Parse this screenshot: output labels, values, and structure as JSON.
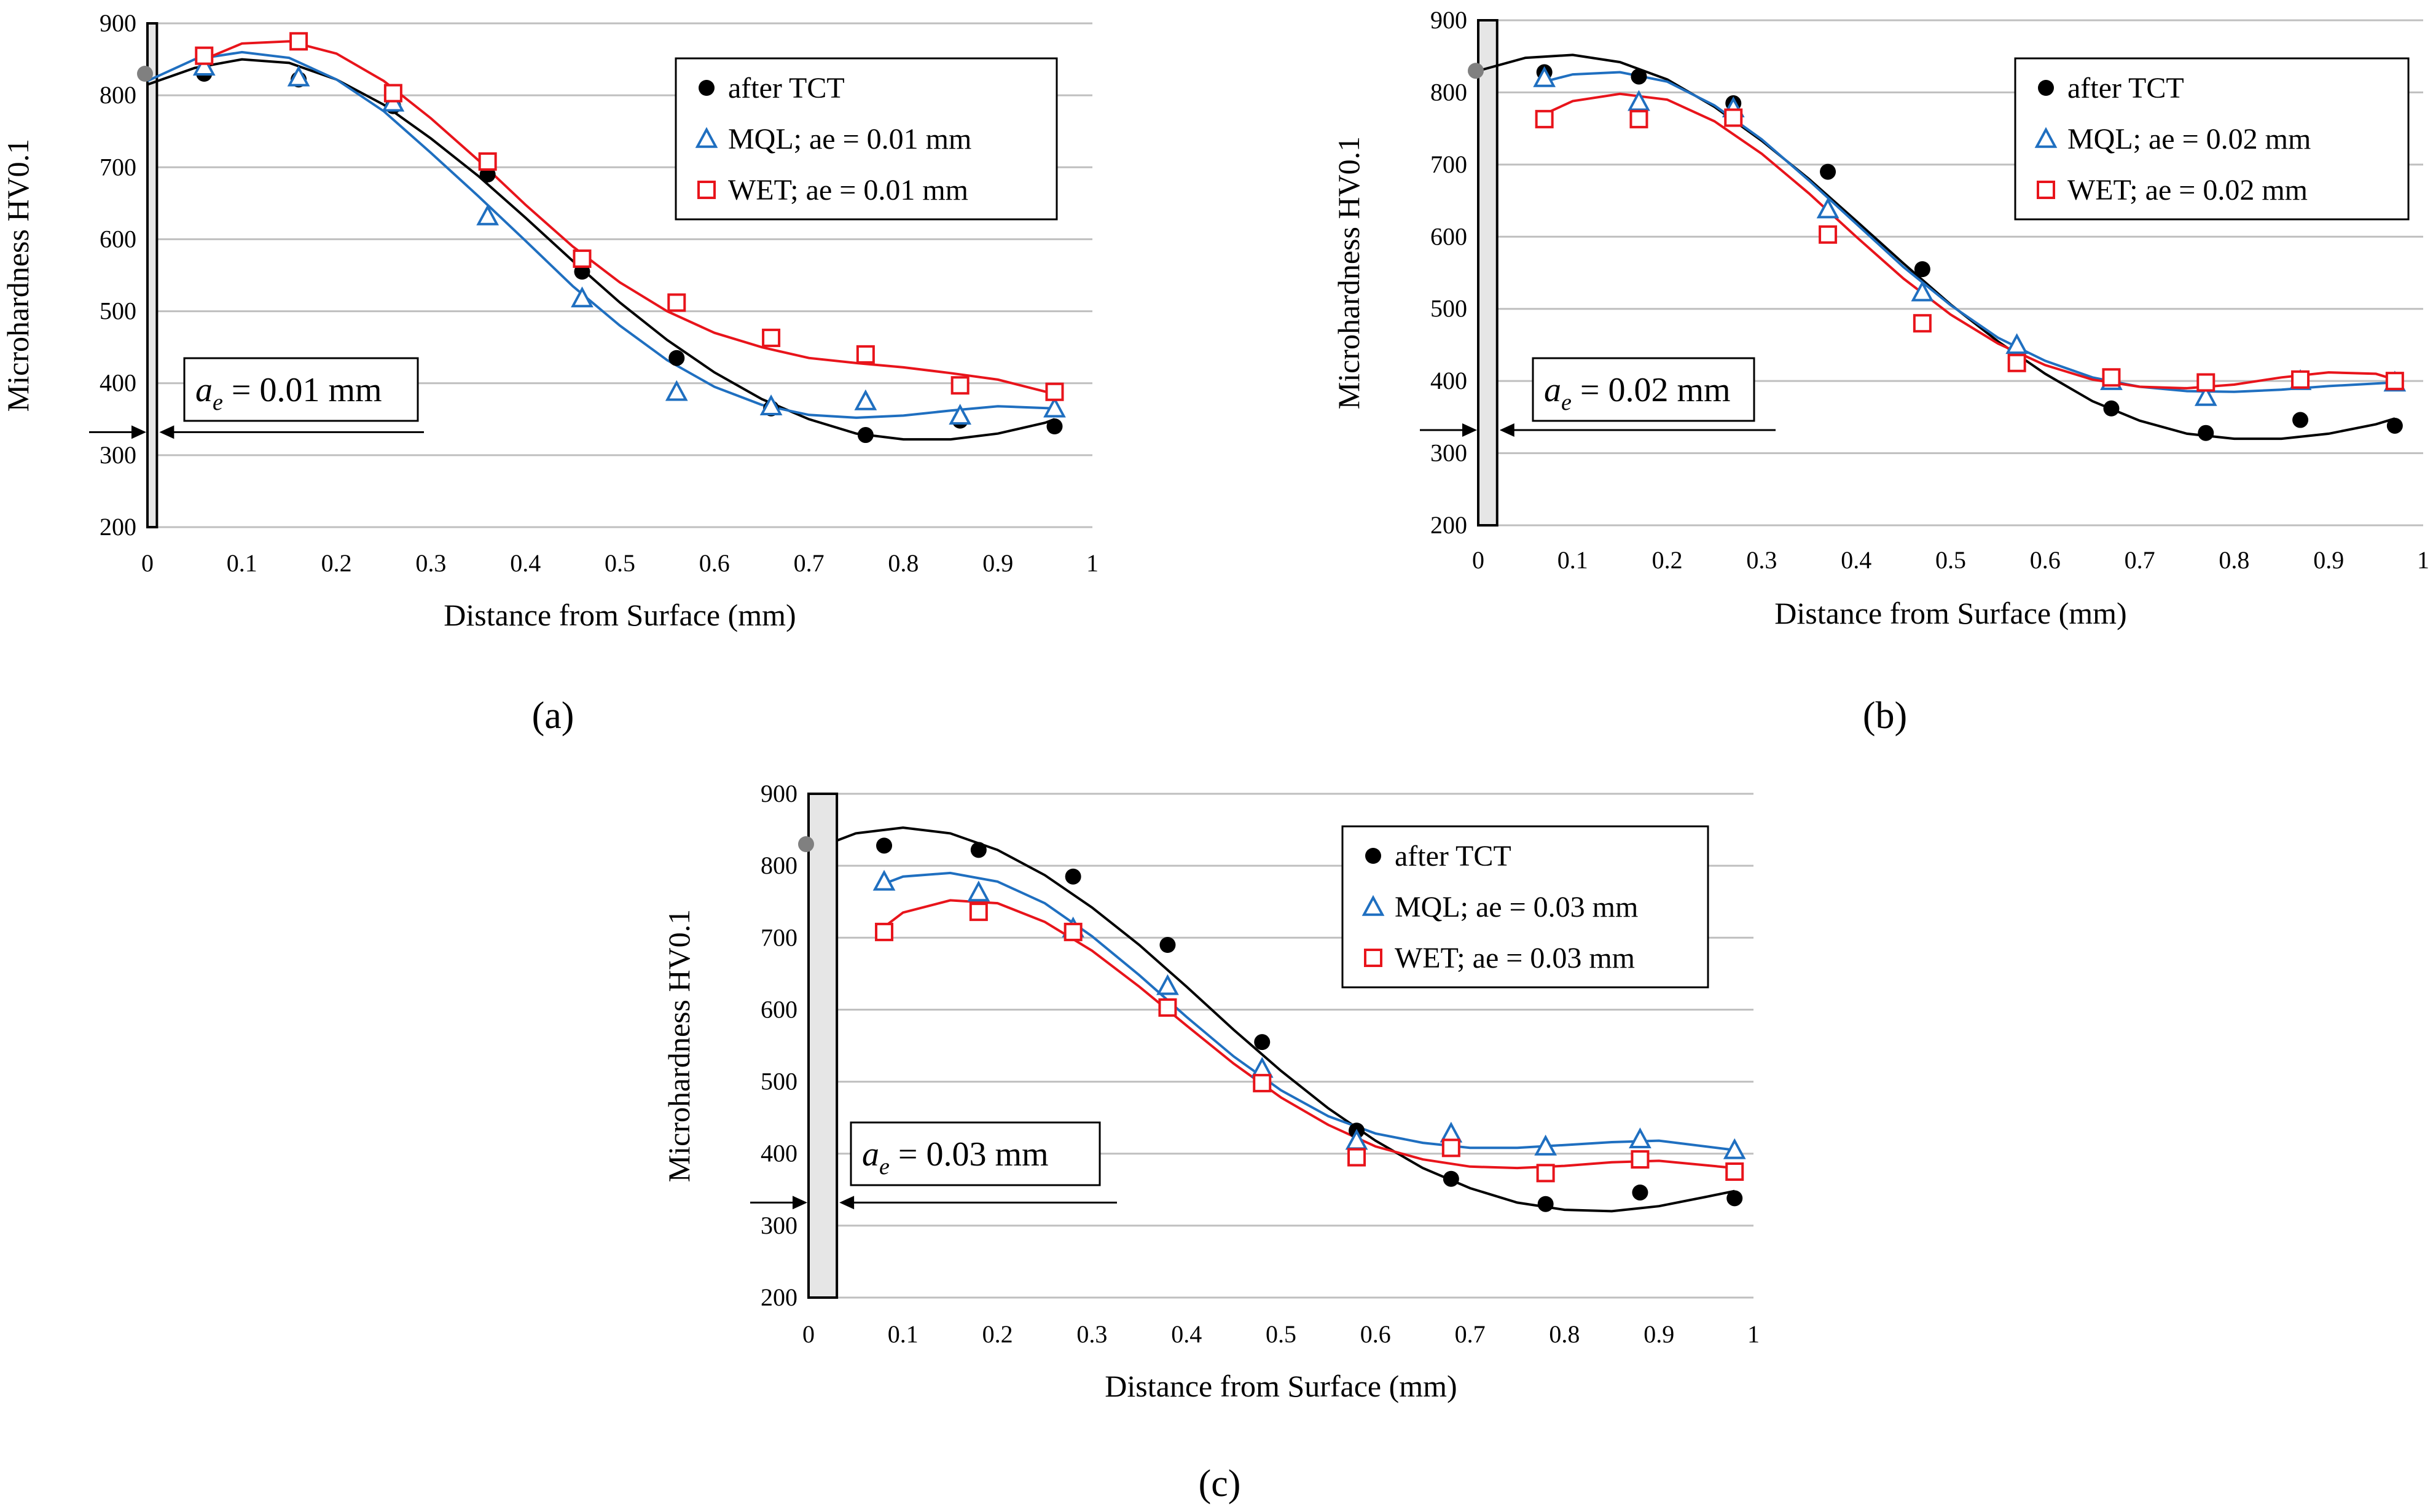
{
  "figure": {
    "panel_labels": [
      "(a)",
      "(b)",
      "(c)"
    ]
  },
  "colors": {
    "tct": "#000000",
    "mql": "#1F6FC0",
    "wet": "#E8141B",
    "grid": "#BFBFBF",
    "band": "#E6E6E6"
  },
  "chart_data": [
    {
      "type": "scatter",
      "panel": "(a)",
      "xlabel": "Distance from Surface (mm)",
      "ylabel": "Microhardness HV0.1",
      "xlim": [
        0,
        1
      ],
      "ylim": [
        200,
        900
      ],
      "xticks": [
        "0",
        "0.1",
        "0.2",
        "0.3",
        "0.4",
        "0.5",
        "0.6",
        "0.7",
        "0.8",
        "0.9",
        "1"
      ],
      "yticks": [
        "200",
        "300",
        "400",
        "500",
        "600",
        "700",
        "800",
        "900"
      ],
      "band_width": 0.01,
      "surface_point": [
        0.0,
        830
      ],
      "marker_level": 332,
      "annotation": {
        "italic": "a",
        "sub": "e",
        "rest": " = 0.01 mm"
      },
      "legend": [
        "after TCT",
        "MQL; ae = 0.01 mm",
        "WET; ae = 0.01 mm"
      ],
      "series": [
        {
          "name": "after TCT",
          "marker": "circle",
          "color": "#000000",
          "x": [
            0.06,
            0.16,
            0.26,
            0.36,
            0.46,
            0.56,
            0.66,
            0.76,
            0.86,
            0.96
          ],
          "y": [
            830,
            822,
            785,
            690,
            555,
            435,
            365,
            328,
            348,
            340
          ],
          "curve": [
            [
              0,
              815
            ],
            [
              0.05,
              838
            ],
            [
              0.1,
              850
            ],
            [
              0.15,
              845
            ],
            [
              0.2,
              822
            ],
            [
              0.25,
              787
            ],
            [
              0.3,
              740
            ],
            [
              0.35,
              688
            ],
            [
              0.4,
              630
            ],
            [
              0.45,
              570
            ],
            [
              0.5,
              512
            ],
            [
              0.55,
              460
            ],
            [
              0.6,
              415
            ],
            [
              0.65,
              378
            ],
            [
              0.7,
              350
            ],
            [
              0.75,
              330
            ],
            [
              0.8,
              322
            ],
            [
              0.85,
              322
            ],
            [
              0.9,
              330
            ],
            [
              0.95,
              345
            ],
            [
              0.96,
              350
            ]
          ]
        },
        {
          "name": "MQL; ae = 0.01 mm",
          "marker": "triangle",
          "color": "#1F6FC0",
          "x": [
            0.06,
            0.16,
            0.26,
            0.36,
            0.46,
            0.56,
            0.66,
            0.76,
            0.86,
            0.96
          ],
          "y": [
            840,
            825,
            790,
            632,
            518,
            388,
            368,
            375,
            355,
            365
          ],
          "curve": [
            [
              0,
              820
            ],
            [
              0.05,
              850
            ],
            [
              0.1,
              860
            ],
            [
              0.15,
              852
            ],
            [
              0.2,
              822
            ],
            [
              0.25,
              778
            ],
            [
              0.3,
              720
            ],
            [
              0.35,
              660
            ],
            [
              0.4,
              598
            ],
            [
              0.45,
              535
            ],
            [
              0.5,
              480
            ],
            [
              0.55,
              432
            ],
            [
              0.6,
              395
            ],
            [
              0.65,
              370
            ],
            [
              0.7,
              356
            ],
            [
              0.75,
              352
            ],
            [
              0.8,
              355
            ],
            [
              0.85,
              362
            ],
            [
              0.9,
              368
            ],
            [
              0.96,
              365
            ]
          ]
        },
        {
          "name": "WET; ae = 0.01 mm",
          "marker": "square",
          "color": "#E8141B",
          "x": [
            0.06,
            0.16,
            0.26,
            0.36,
            0.46,
            0.56,
            0.66,
            0.76,
            0.86,
            0.96
          ],
          "y": [
            855,
            875,
            803,
            708,
            573,
            512,
            463,
            440,
            397,
            388
          ],
          "curve": [
            [
              0.06,
              850
            ],
            [
              0.1,
              872
            ],
            [
              0.15,
              875
            ],
            [
              0.2,
              858
            ],
            [
              0.25,
              820
            ],
            [
              0.3,
              768
            ],
            [
              0.35,
              710
            ],
            [
              0.4,
              648
            ],
            [
              0.45,
              590
            ],
            [
              0.5,
              540
            ],
            [
              0.55,
              500
            ],
            [
              0.6,
              470
            ],
            [
              0.65,
              450
            ],
            [
              0.7,
              435
            ],
            [
              0.75,
              428
            ],
            [
              0.8,
              422
            ],
            [
              0.85,
              414
            ],
            [
              0.9,
              405
            ],
            [
              0.96,
              385
            ]
          ]
        }
      ]
    },
    {
      "type": "scatter",
      "panel": "(b)",
      "xlabel": "Distance from Surface (mm)",
      "ylabel": "Microhardness HV0.1",
      "xlim": [
        0,
        1
      ],
      "ylim": [
        200,
        900
      ],
      "xticks": [
        "0",
        "0.1",
        "0.2",
        "0.3",
        "0.4",
        "0.5",
        "0.6",
        "0.7",
        "0.8",
        "0.9",
        "1"
      ],
      "yticks": [
        "200",
        "300",
        "400",
        "500",
        "600",
        "700",
        "800",
        "900"
      ],
      "band_width": 0.02,
      "surface_point": [
        0.0,
        830
      ],
      "marker_level": 332,
      "annotation": {
        "italic": "a",
        "sub": "e",
        "rest": " = 0.02 mm"
      },
      "legend": [
        "after TCT",
        "MQL; ae = 0.02 mm",
        "WET; ae = 0.02 mm"
      ],
      "series": [
        {
          "name": "after TCT",
          "marker": "circle",
          "color": "#000000",
          "x": [
            0.07,
            0.17,
            0.27,
            0.37,
            0.47,
            0.57,
            0.67,
            0.77,
            0.87,
            0.97
          ],
          "y": [
            828,
            822,
            785,
            690,
            555,
            432,
            362,
            328,
            346,
            338
          ],
          "curve": [
            [
              0,
              830
            ],
            [
              0.05,
              848
            ],
            [
              0.1,
              852
            ],
            [
              0.15,
              842
            ],
            [
              0.2,
              818
            ],
            [
              0.25,
              780
            ],
            [
              0.3,
              733
            ],
            [
              0.35,
              680
            ],
            [
              0.4,
              622
            ],
            [
              0.45,
              563
            ],
            [
              0.5,
              506
            ],
            [
              0.55,
              455
            ],
            [
              0.6,
              410
            ],
            [
              0.65,
              372
            ],
            [
              0.7,
              345
            ],
            [
              0.75,
              327
            ],
            [
              0.8,
              320
            ],
            [
              0.85,
              320
            ],
            [
              0.9,
              327
            ],
            [
              0.95,
              340
            ],
            [
              0.97,
              348
            ]
          ]
        },
        {
          "name": "MQL; ae = 0.02 mm",
          "marker": "triangle",
          "color": "#1F6FC0",
          "x": [
            0.07,
            0.17,
            0.27,
            0.37,
            0.47,
            0.57,
            0.67,
            0.77,
            0.87,
            0.97
          ],
          "y": [
            820,
            787,
            778,
            638,
            523,
            450,
            400,
            378,
            400,
            398
          ],
          "curve": [
            [
              0.07,
              815
            ],
            [
              0.1,
              825
            ],
            [
              0.15,
              828
            ],
            [
              0.2,
              815
            ],
            [
              0.25,
              782
            ],
            [
              0.3,
              735
            ],
            [
              0.35,
              678
            ],
            [
              0.4,
              618
            ],
            [
              0.45,
              558
            ],
            [
              0.5,
              505
            ],
            [
              0.55,
              460
            ],
            [
              0.6,
              428
            ],
            [
              0.65,
              405
            ],
            [
              0.7,
              392
            ],
            [
              0.75,
              386
            ],
            [
              0.8,
              385
            ],
            [
              0.85,
              388
            ],
            [
              0.9,
              393
            ],
            [
              0.97,
              398
            ]
          ]
        },
        {
          "name": "WET; ae = 0.02 mm",
          "marker": "square",
          "color": "#E8141B",
          "x": [
            0.07,
            0.17,
            0.27,
            0.37,
            0.47,
            0.57,
            0.67,
            0.77,
            0.87,
            0.97
          ],
          "y": [
            763,
            763,
            765,
            603,
            480,
            425,
            405,
            398,
            402,
            400
          ],
          "curve": [
            [
              0.07,
              770
            ],
            [
              0.1,
              788
            ],
            [
              0.15,
              798
            ],
            [
              0.2,
              790
            ],
            [
              0.25,
              760
            ],
            [
              0.3,
              715
            ],
            [
              0.35,
              660
            ],
            [
              0.4,
              600
            ],
            [
              0.45,
              542
            ],
            [
              0.5,
              492
            ],
            [
              0.55,
              452
            ],
            [
              0.6,
              422
            ],
            [
              0.65,
              402
            ],
            [
              0.7,
              392
            ],
            [
              0.75,
              390
            ],
            [
              0.8,
              395
            ],
            [
              0.85,
              405
            ],
            [
              0.9,
              412
            ],
            [
              0.95,
              410
            ],
            [
              0.97,
              402
            ]
          ]
        }
      ]
    },
    {
      "type": "scatter",
      "panel": "(c)",
      "xlabel": "Distance from Surface (mm)",
      "ylabel": "Microhardness HV0.1",
      "xlim": [
        0,
        1
      ],
      "ylim": [
        200,
        900
      ],
      "xticks": [
        "0",
        "0.1",
        "0.2",
        "0.3",
        "0.4",
        "0.5",
        "0.6",
        "0.7",
        "0.8",
        "0.9",
        "1"
      ],
      "yticks": [
        "200",
        "300",
        "400",
        "500",
        "600",
        "700",
        "800",
        "900"
      ],
      "band_width": 0.03,
      "surface_point": [
        0.0,
        830
      ],
      "marker_level": 332,
      "annotation": {
        "italic": "a",
        "sub": "e",
        "rest": " = 0.03 mm"
      },
      "legend": [
        "after TCT",
        "MQL; ae = 0.03 mm",
        "WET; ae = 0.03 mm"
      ],
      "series": [
        {
          "name": "after TCT",
          "marker": "circle",
          "color": "#000000",
          "x": [
            0.08,
            0.18,
            0.28,
            0.38,
            0.48,
            0.58,
            0.68,
            0.78,
            0.88,
            0.98
          ],
          "y": [
            828,
            822,
            785,
            690,
            555,
            432,
            365,
            330,
            346,
            338
          ],
          "curve": [
            [
              0.03,
              835
            ],
            [
              0.05,
              845
            ],
            [
              0.1,
              853
            ],
            [
              0.15,
              845
            ],
            [
              0.2,
              822
            ],
            [
              0.25,
              787
            ],
            [
              0.3,
              742
            ],
            [
              0.35,
              690
            ],
            [
              0.4,
              632
            ],
            [
              0.45,
              572
            ],
            [
              0.5,
              515
            ],
            [
              0.55,
              463
            ],
            [
              0.6,
              418
            ],
            [
              0.65,
              380
            ],
            [
              0.7,
              352
            ],
            [
              0.75,
              332
            ],
            [
              0.8,
              322
            ],
            [
              0.85,
              320
            ],
            [
              0.9,
              327
            ],
            [
              0.95,
              340
            ],
            [
              0.98,
              348
            ]
          ]
        },
        {
          "name": "MQL; ae = 0.03 mm",
          "marker": "triangle",
          "color": "#1F6FC0",
          "x": [
            0.08,
            0.18,
            0.28,
            0.38,
            0.48,
            0.58,
            0.68,
            0.78,
            0.88,
            0.98
          ],
          "y": [
            778,
            763,
            713,
            633,
            518,
            418,
            428,
            410,
            420,
            405
          ],
          "curve": [
            [
              0.08,
              775
            ],
            [
              0.1,
              785
            ],
            [
              0.15,
              790
            ],
            [
              0.2,
              778
            ],
            [
              0.25,
              748
            ],
            [
              0.3,
              702
            ],
            [
              0.35,
              648
            ],
            [
              0.4,
              590
            ],
            [
              0.45,
              535
            ],
            [
              0.5,
              488
            ],
            [
              0.55,
              452
            ],
            [
              0.6,
              428
            ],
            [
              0.65,
              415
            ],
            [
              0.7,
              408
            ],
            [
              0.75,
              408
            ],
            [
              0.8,
              412
            ],
            [
              0.85,
              416
            ],
            [
              0.9,
              418
            ],
            [
              0.98,
              405
            ]
          ]
        },
        {
          "name": "WET; ae = 0.03 mm",
          "marker": "square",
          "color": "#E8141B",
          "x": [
            0.08,
            0.18,
            0.28,
            0.38,
            0.48,
            0.58,
            0.68,
            0.78,
            0.88,
            0.98
          ],
          "y": [
            708,
            736,
            708,
            603,
            498,
            395,
            408,
            373,
            392,
            375
          ],
          "curve": [
            [
              0.08,
              715
            ],
            [
              0.1,
              735
            ],
            [
              0.15,
              752
            ],
            [
              0.2,
              748
            ],
            [
              0.25,
              722
            ],
            [
              0.3,
              682
            ],
            [
              0.35,
              632
            ],
            [
              0.4,
              578
            ],
            [
              0.45,
              525
            ],
            [
              0.5,
              478
            ],
            [
              0.55,
              440
            ],
            [
              0.6,
              410
            ],
            [
              0.65,
              392
            ],
            [
              0.7,
              382
            ],
            [
              0.75,
              380
            ],
            [
              0.8,
              383
            ],
            [
              0.85,
              388
            ],
            [
              0.9,
              390
            ],
            [
              0.98,
              380
            ]
          ]
        }
      ]
    }
  ]
}
